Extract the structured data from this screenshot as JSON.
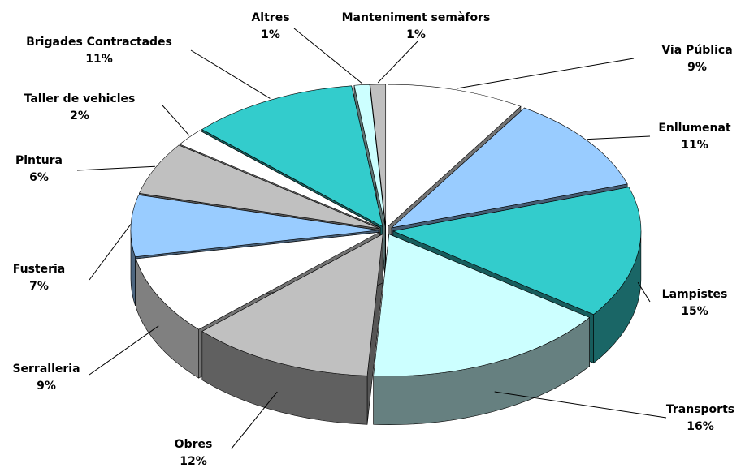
{
  "chart_data": {
    "type": "pie",
    "categories": [
      "Via Pública",
      "Enllumenat",
      "Lampistes",
      "Transports",
      "Obres",
      "Serralleria",
      "Fusteria",
      "Pintura",
      "Taller de vehicles",
      "Brigades Contractades",
      "Altres",
      "Manteniment semàfors"
    ],
    "values": [
      9,
      11,
      15,
      16,
      12,
      9,
      7,
      6,
      2,
      11,
      1,
      1
    ],
    "value_labels": [
      "9%",
      "11%",
      "15%",
      "16%",
      "12%",
      "9%",
      "7%",
      "6%",
      "2%",
      "11%",
      "1%",
      "1%"
    ],
    "colors": [
      "#ffffff",
      "#99ccff",
      "#33cccc",
      "#ccffff",
      "#c0c0c0",
      "#ffffff",
      "#99ccff",
      "#c0c0c0",
      "#ffffff",
      "#33cccc",
      "#ccffff",
      "#c0c0c0"
    ]
  }
}
